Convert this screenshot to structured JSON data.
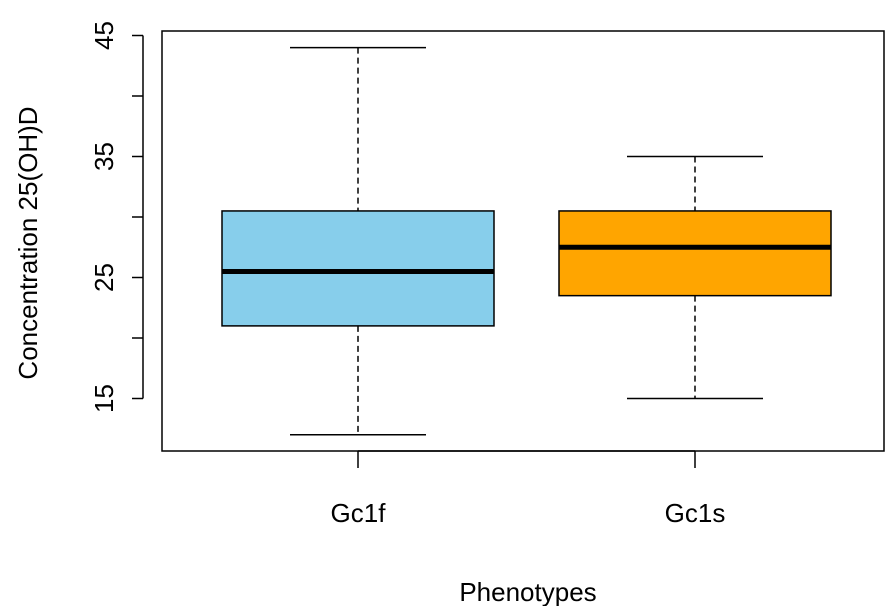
{
  "chart_data": {
    "type": "box",
    "xlabel": "Phenotypes",
    "ylabel": "Concentration 25(OH)D",
    "yticks": [
      15,
      25,
      35,
      45
    ],
    "yminor": [
      20,
      30,
      40
    ],
    "ylim": [
      10.5,
      45.5
    ],
    "grid": false,
    "categories": [
      "Gc1f",
      "Gc1s"
    ],
    "boxes": [
      {
        "label": "Gc1f",
        "min": 12,
        "q1": 21,
        "median": 25.5,
        "q3": 30.5,
        "max": 44,
        "color": "#87CEEB"
      },
      {
        "label": "Gc1s",
        "min": 15,
        "q1": 23.5,
        "median": 27.5,
        "q3": 30.5,
        "max": 35,
        "color": "#FFA500"
      }
    ]
  }
}
